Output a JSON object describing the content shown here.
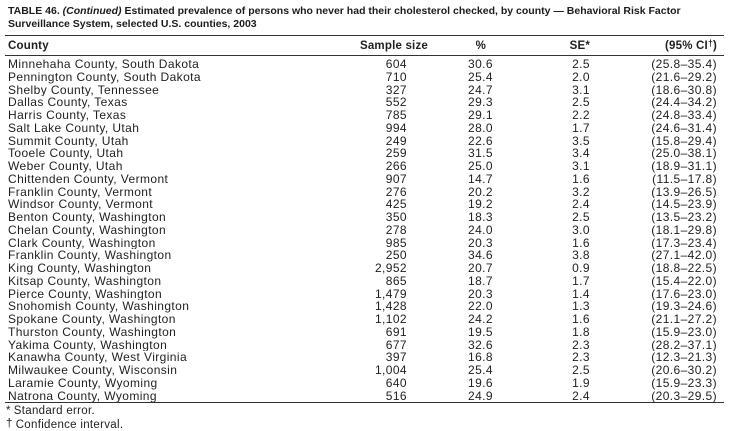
{
  "title": {
    "label": "TABLE 46.",
    "continued": "(Continued)",
    "text": "Estimated prevalence of persons who never had their cholesterol checked, by county — Behavioral Risk Factor Surveillance System, selected U.S. counties, 2003"
  },
  "table": {
    "columns": {
      "county": "County",
      "sample_size": "Sample size",
      "percent": "%",
      "se": "SE*",
      "ci_open": "(95% CI",
      "ci_dagger": "†",
      "ci_close": ")"
    },
    "rows": [
      {
        "county": "Minnehaha County, South Dakota",
        "sample_size": "604",
        "percent": "30.6",
        "se": "2.5",
        "ci": "(25.8–35.4)"
      },
      {
        "county": "Pennington County, South Dakota",
        "sample_size": "710",
        "percent": "25.4",
        "se": "2.0",
        "ci": "(21.6–29.2)"
      },
      {
        "county": "Shelby County, Tennessee",
        "sample_size": "327",
        "percent": "24.7",
        "se": "3.1",
        "ci": "(18.6–30.8)"
      },
      {
        "county": "Dallas County, Texas",
        "sample_size": "552",
        "percent": "29.3",
        "se": "2.5",
        "ci": "(24.4–34.2)"
      },
      {
        "county": "Harris County, Texas",
        "sample_size": "785",
        "percent": "29.1",
        "se": "2.2",
        "ci": "(24.8–33.4)"
      },
      {
        "county": "Salt Lake County, Utah",
        "sample_size": "994",
        "percent": "28.0",
        "se": "1.7",
        "ci": "(24.6–31.4)"
      },
      {
        "county": "Summit County, Utah",
        "sample_size": "249",
        "percent": "22.6",
        "se": "3.5",
        "ci": "(15.8–29.4)"
      },
      {
        "county": "Tooele County, Utah",
        "sample_size": "259",
        "percent": "31.5",
        "se": "3.4",
        "ci": "(25.0–38.1)"
      },
      {
        "county": "Weber County, Utah",
        "sample_size": "266",
        "percent": "25.0",
        "se": "3.1",
        "ci": "(18.9–31.1)"
      },
      {
        "county": "Chittenden County, Vermont",
        "sample_size": "907",
        "percent": "14.7",
        "se": "1.6",
        "ci": "(11.5–17.8)"
      },
      {
        "county": "Franklin County, Vermont",
        "sample_size": "276",
        "percent": "20.2",
        "se": "3.2",
        "ci": "(13.9–26.5)"
      },
      {
        "county": "Windsor County, Vermont",
        "sample_size": "425",
        "percent": "19.2",
        "se": "2.4",
        "ci": "(14.5–23.9)"
      },
      {
        "county": "Benton County, Washington",
        "sample_size": "350",
        "percent": "18.3",
        "se": "2.5",
        "ci": "(13.5–23.2)"
      },
      {
        "county": "Chelan County, Washington",
        "sample_size": "278",
        "percent": "24.0",
        "se": "3.0",
        "ci": "(18.1–29.8)"
      },
      {
        "county": "Clark County, Washington",
        "sample_size": "985",
        "percent": "20.3",
        "se": "1.6",
        "ci": "(17.3–23.4)"
      },
      {
        "county": "Franklin County, Washington",
        "sample_size": "250",
        "percent": "34.6",
        "se": "3.8",
        "ci": "(27.1–42.0)"
      },
      {
        "county": "King County, Washington",
        "sample_size": "2,952",
        "percent": "20.7",
        "se": "0.9",
        "ci": "(18.8–22.5)"
      },
      {
        "county": "Kitsap County, Washington",
        "sample_size": "865",
        "percent": "18.7",
        "se": "1.7",
        "ci": "(15.4–22.0)"
      },
      {
        "county": "Pierce County, Washington",
        "sample_size": "1,479",
        "percent": "20.3",
        "se": "1.4",
        "ci": "(17.6–23.0)"
      },
      {
        "county": "Snohomish County, Washington",
        "sample_size": "1,428",
        "percent": "22.0",
        "se": "1.3",
        "ci": "(19.3–24.6)"
      },
      {
        "county": "Spokane County, Washington",
        "sample_size": "1,102",
        "percent": "24.2",
        "se": "1.6",
        "ci": "(21.1–27.2)"
      },
      {
        "county": "Thurston County, Washington",
        "sample_size": "691",
        "percent": "19.5",
        "se": "1.8",
        "ci": "(15.9–23.0)"
      },
      {
        "county": "Yakima County, Washington",
        "sample_size": "677",
        "percent": "32.6",
        "se": "2.3",
        "ci": "(28.2–37.1)"
      },
      {
        "county": "Kanawha County, West Virginia",
        "sample_size": "397",
        "percent": "16.8",
        "se": "2.3",
        "ci": "(12.3–21.3)"
      },
      {
        "county": "Milwaukee County, Wisconsin",
        "sample_size": "1,004",
        "percent": "25.4",
        "se": "2.5",
        "ci": "(20.6–30.2)"
      },
      {
        "county": "Laramie County, Wyoming",
        "sample_size": "640",
        "percent": "19.6",
        "se": "1.9",
        "ci": "(15.9–23.3)"
      },
      {
        "county": "Natrona County, Wyoming",
        "sample_size": "516",
        "percent": "24.9",
        "se": "2.4",
        "ci": "(20.3–29.5)"
      }
    ]
  },
  "footnotes": [
    {
      "marker": "*",
      "text": "Standard error."
    },
    {
      "marker": "†",
      "text": "Confidence interval."
    }
  ],
  "colors": {
    "text": "#1f1f1f",
    "rule": "#333333",
    "background": "#ffffff"
  }
}
